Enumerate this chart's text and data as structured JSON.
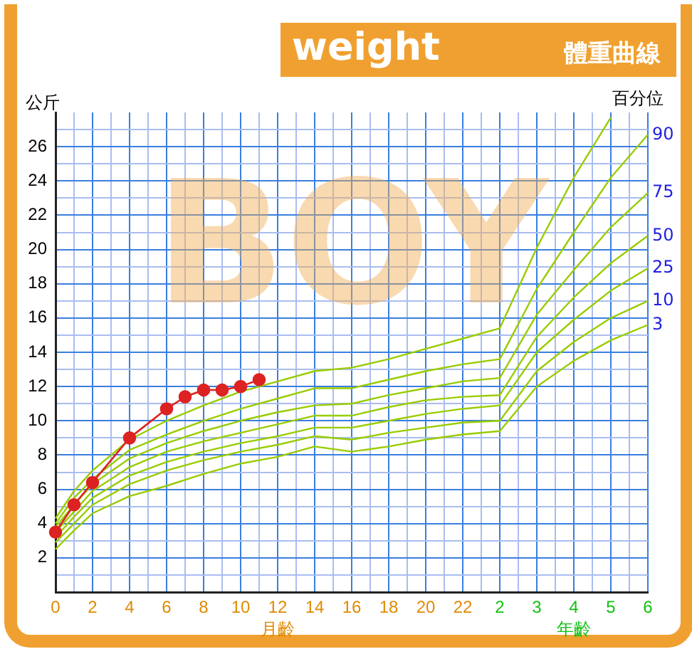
{
  "chart_data": {
    "type": "line",
    "title": "weight",
    "subtitle": "體重曲線",
    "xlabel": "月齡",
    "ylabel": "公斤",
    "legend_title": "百分位",
    "annotations": [
      "BOY",
      "年齡"
    ],
    "categories": [
      "0",
      null,
      "2",
      null,
      "4",
      null,
      "6",
      null,
      "8",
      null,
      "10",
      null,
      "12",
      null,
      "14",
      null,
      "16",
      null,
      "18",
      null,
      "20",
      null,
      "22",
      null,
      "2",
      null,
      "3",
      null,
      "4",
      null,
      "5",
      null,
      "6"
    ],
    "series": [
      {
        "color": "#99cc00",
        "values": [
          4.3,
          5.9,
          7.1,
          null,
          8.9,
          null,
          10.0,
          null,
          10.9,
          null,
          11.7,
          null,
          12.3,
          null,
          12.9,
          null,
          13.1,
          null,
          13.6,
          null,
          14.2,
          null,
          14.8,
          null,
          15.4,
          null,
          20.1,
          null,
          24.2,
          null,
          27.7,
          null,
          null
        ]
      },
      {
        "name": "90",
        "color": "#99cc00",
        "values": [
          4.0,
          5.5,
          6.6,
          null,
          8.3,
          null,
          9.2,
          null,
          10.0,
          null,
          10.7,
          null,
          11.3,
          null,
          11.9,
          null,
          11.9,
          null,
          12.4,
          null,
          12.9,
          null,
          13.3,
          null,
          13.6,
          null,
          17.7,
          null,
          21.0,
          null,
          24.2,
          null,
          26.7
        ]
      },
      {
        "name": "75",
        "color": "#99cc00",
        "values": [
          3.8,
          5.1,
          6.3,
          null,
          7.8,
          null,
          8.7,
          null,
          9.4,
          null,
          10.0,
          null,
          10.5,
          null,
          10.9,
          null,
          11.0,
          null,
          11.5,
          null,
          11.9,
          null,
          12.3,
          null,
          12.5,
          null,
          16.2,
          null,
          18.8,
          null,
          21.3,
          null,
          23.3
        ]
      },
      {
        "name": "50",
        "color": "#99cc00",
        "values": [
          3.5,
          4.7,
          5.9,
          null,
          7.3,
          null,
          8.2,
          null,
          8.8,
          null,
          9.3,
          null,
          9.8,
          null,
          10.3,
          null,
          10.3,
          null,
          10.8,
          null,
          11.2,
          null,
          11.4,
          null,
          11.5,
          null,
          14.9,
          null,
          17.2,
          null,
          19.2,
          null,
          20.8
        ]
      },
      {
        "name": "25",
        "color": "#99cc00",
        "values": [
          3.2,
          4.4,
          5.5,
          null,
          6.8,
          null,
          7.6,
          null,
          8.2,
          null,
          8.7,
          null,
          9.1,
          null,
          9.6,
          null,
          9.6,
          null,
          10.0,
          null,
          10.4,
          null,
          10.7,
          null,
          10.9,
          null,
          14.0,
          null,
          15.9,
          null,
          17.6,
          null,
          18.9
        ]
      },
      {
        "name": "10",
        "color": "#99cc00",
        "values": [
          2.9,
          4.0,
          5.1,
          null,
          6.3,
          null,
          7.1,
          null,
          7.7,
          null,
          8.2,
          null,
          8.6,
          null,
          9.1,
          null,
          8.9,
          null,
          9.3,
          null,
          9.6,
          null,
          9.9,
          null,
          10.0,
          null,
          12.9,
          null,
          14.6,
          null,
          16.0,
          null,
          17.0
        ]
      },
      {
        "name": "3",
        "color": "#99cc00",
        "values": [
          2.5,
          3.6,
          4.6,
          null,
          5.6,
          null,
          6.2,
          null,
          6.9,
          null,
          7.5,
          null,
          7.9,
          null,
          8.5,
          null,
          8.2,
          null,
          8.5,
          null,
          8.9,
          null,
          9.2,
          null,
          9.4,
          null,
          12.0,
          null,
          13.5,
          null,
          14.7,
          null,
          15.6
        ]
      },
      {
        "color": "#dd2222",
        "marker": "circle",
        "values": [
          3.5,
          5.1,
          6.4,
          null,
          9.0,
          null,
          10.7,
          11.4,
          11.8,
          11.8,
          12.0,
          12.4,
          null,
          null,
          null,
          null,
          null,
          null,
          null,
          null,
          null,
          null,
          null,
          null,
          null,
          null,
          null,
          null,
          null,
          null,
          null,
          null,
          null
        ]
      }
    ],
    "ylim": [
      0,
      28
    ],
    "yticks": [
      {
        "value": 1,
        "label": null
      },
      2,
      {
        "value": 3,
        "label": null
      },
      4,
      {
        "value": 5,
        "label": null
      },
      6,
      {
        "value": 7,
        "label": null
      },
      8,
      {
        "value": 9,
        "label": null
      },
      10,
      {
        "value": 11,
        "label": null
      },
      12,
      {
        "value": 13,
        "label": null
      },
      14,
      {
        "value": 15,
        "label": null
      },
      16,
      {
        "value": 17,
        "label": null
      },
      18,
      {
        "value": 19,
        "label": null
      },
      20,
      {
        "value": 21,
        "label": null
      },
      22,
      {
        "value": 23,
        "label": null
      },
      24,
      {
        "value": 25,
        "label": null
      },
      26,
      {
        "value": 27,
        "label": null
      }
    ],
    "grid": true,
    "legend": false,
    "marker": "none",
    "line_style": "solid"
  }
}
